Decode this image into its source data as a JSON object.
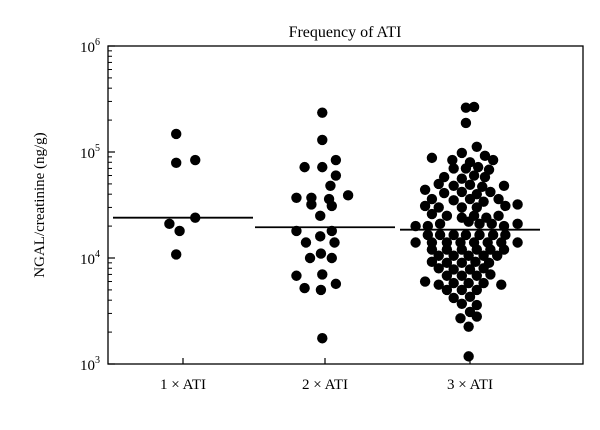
{
  "chart_data": {
    "type": "scatter",
    "title": "Frequency of ATI",
    "ylabel": "NGAL/creatinine (ng/g)",
    "xlabel": "",
    "yscale": "log",
    "ylim": [
      1000,
      1000000
    ],
    "y_ticks": [
      {
        "value": 1000,
        "base": "10",
        "exp": "3"
      },
      {
        "value": 10000,
        "base": "10",
        "exp": "4"
      },
      {
        "value": 100000,
        "base": "10",
        "exp": "5"
      },
      {
        "value": 1000000,
        "base": "10",
        "exp": "6"
      }
    ],
    "categories": [
      "1 × ATI",
      "2 × ATI",
      "3 × ATI"
    ],
    "grid": false,
    "series": [
      {
        "category": "1 × ATI",
        "median": 24000,
        "points": [
          {
            "x": -0.1,
            "y": 148000
          },
          {
            "x": -0.1,
            "y": 79000
          },
          {
            "x": 0.18,
            "y": 84000
          },
          {
            "x": -0.2,
            "y": 21000
          },
          {
            "x": 0.18,
            "y": 24000
          },
          {
            "x": -0.05,
            "y": 18000
          },
          {
            "x": -0.1,
            "y": 10800
          }
        ]
      },
      {
        "category": "2 × ATI",
        "median": 19500,
        "points": [
          {
            "x": -0.04,
            "y": 235000
          },
          {
            "x": -0.04,
            "y": 130000
          },
          {
            "x": -0.3,
            "y": 72000
          },
          {
            "x": -0.04,
            "y": 72000
          },
          {
            "x": 0.16,
            "y": 84000
          },
          {
            "x": 0.16,
            "y": 60000
          },
          {
            "x": 0.08,
            "y": 48000
          },
          {
            "x": -0.42,
            "y": 37000
          },
          {
            "x": -0.2,
            "y": 37000
          },
          {
            "x": 0.06,
            "y": 36000
          },
          {
            "x": 0.34,
            "y": 39000
          },
          {
            "x": -0.2,
            "y": 32000
          },
          {
            "x": 0.1,
            "y": 31000
          },
          {
            "x": -0.07,
            "y": 25000
          },
          {
            "x": -0.42,
            "y": 18000
          },
          {
            "x": 0.1,
            "y": 18000
          },
          {
            "x": -0.07,
            "y": 16000
          },
          {
            "x": -0.28,
            "y": 14000
          },
          {
            "x": 0.14,
            "y": 14000
          },
          {
            "x": -0.06,
            "y": 11000
          },
          {
            "x": -0.22,
            "y": 10000
          },
          {
            "x": 0.1,
            "y": 10000
          },
          {
            "x": -0.42,
            "y": 6800
          },
          {
            "x": -0.04,
            "y": 7000
          },
          {
            "x": -0.3,
            "y": 5200
          },
          {
            "x": -0.06,
            "y": 5000
          },
          {
            "x": 0.16,
            "y": 5700
          },
          {
            "x": -0.04,
            "y": 1750
          }
        ]
      },
      {
        "category": "3 × ATI",
        "median": 18500,
        "points": [
          {
            "x": -0.06,
            "y": 262000
          },
          {
            "x": 0.06,
            "y": 266000
          },
          {
            "x": -0.06,
            "y": 188000
          },
          {
            "x": 0.1,
            "y": 112000
          },
          {
            "x": -0.12,
            "y": 98000
          },
          {
            "x": 0.22,
            "y": 92000
          },
          {
            "x": -0.56,
            "y": 88000
          },
          {
            "x": -0.26,
            "y": 84000
          },
          {
            "x": 0.0,
            "y": 80000
          },
          {
            "x": 0.34,
            "y": 84000
          },
          {
            "x": -0.24,
            "y": 70000
          },
          {
            "x": -0.06,
            "y": 70000
          },
          {
            "x": 0.12,
            "y": 72000
          },
          {
            "x": 0.28,
            "y": 68000
          },
          {
            "x": -0.38,
            "y": 58000
          },
          {
            "x": -0.12,
            "y": 56000
          },
          {
            "x": 0.06,
            "y": 60000
          },
          {
            "x": 0.22,
            "y": 58000
          },
          {
            "x": -0.46,
            "y": 50000
          },
          {
            "x": -0.24,
            "y": 48000
          },
          {
            "x": 0.0,
            "y": 49000
          },
          {
            "x": 0.18,
            "y": 47000
          },
          {
            "x": 0.5,
            "y": 48000
          },
          {
            "x": -0.66,
            "y": 44000
          },
          {
            "x": -0.38,
            "y": 41000
          },
          {
            "x": -0.12,
            "y": 42000
          },
          {
            "x": 0.1,
            "y": 40000
          },
          {
            "x": 0.3,
            "y": 42000
          },
          {
            "x": -0.56,
            "y": 36000
          },
          {
            "x": -0.24,
            "y": 35000
          },
          {
            "x": 0.0,
            "y": 36000
          },
          {
            "x": 0.2,
            "y": 34000
          },
          {
            "x": 0.42,
            "y": 36000
          },
          {
            "x": -0.66,
            "y": 31000
          },
          {
            "x": -0.46,
            "y": 30000
          },
          {
            "x": -0.12,
            "y": 30000
          },
          {
            "x": 0.1,
            "y": 30000
          },
          {
            "x": 0.52,
            "y": 31000
          },
          {
            "x": 0.7,
            "y": 32000
          },
          {
            "x": -0.56,
            "y": 26000
          },
          {
            "x": -0.34,
            "y": 25000
          },
          {
            "x": -0.12,
            "y": 24000
          },
          {
            "x": 0.06,
            "y": 25000
          },
          {
            "x": 0.24,
            "y": 24000
          },
          {
            "x": 0.42,
            "y": 25000
          },
          {
            "x": -0.8,
            "y": 20000
          },
          {
            "x": -0.62,
            "y": 20000
          },
          {
            "x": -0.44,
            "y": 21000
          },
          {
            "x": -0.02,
            "y": 22000
          },
          {
            "x": 0.14,
            "y": 21000
          },
          {
            "x": 0.32,
            "y": 21000
          },
          {
            "x": 0.5,
            "y": 20000
          },
          {
            "x": 0.7,
            "y": 21000
          },
          {
            "x": -0.62,
            "y": 16500
          },
          {
            "x": -0.44,
            "y": 16500
          },
          {
            "x": -0.24,
            "y": 16500
          },
          {
            "x": -0.06,
            "y": 16500
          },
          {
            "x": 0.14,
            "y": 16500
          },
          {
            "x": 0.34,
            "y": 16500
          },
          {
            "x": 0.52,
            "y": 16500
          },
          {
            "x": -0.8,
            "y": 14000
          },
          {
            "x": -0.56,
            "y": 14000
          },
          {
            "x": -0.34,
            "y": 14000
          },
          {
            "x": -0.14,
            "y": 14000
          },
          {
            "x": 0.06,
            "y": 14000
          },
          {
            "x": 0.26,
            "y": 14000
          },
          {
            "x": 0.46,
            "y": 14000
          },
          {
            "x": 0.7,
            "y": 14000
          },
          {
            "x": -0.56,
            "y": 12000
          },
          {
            "x": -0.34,
            "y": 12000
          },
          {
            "x": -0.12,
            "y": 12000
          },
          {
            "x": 0.1,
            "y": 12000
          },
          {
            "x": 0.3,
            "y": 12000
          },
          {
            "x": 0.5,
            "y": 12000
          },
          {
            "x": -0.46,
            "y": 10500
          },
          {
            "x": -0.24,
            "y": 10500
          },
          {
            "x": -0.02,
            "y": 10500
          },
          {
            "x": 0.2,
            "y": 10500
          },
          {
            "x": 0.4,
            "y": 10500
          },
          {
            "x": -0.56,
            "y": 9200
          },
          {
            "x": -0.34,
            "y": 9000
          },
          {
            "x": -0.12,
            "y": 9000
          },
          {
            "x": 0.08,
            "y": 9200
          },
          {
            "x": 0.28,
            "y": 9000
          },
          {
            "x": -0.46,
            "y": 8000
          },
          {
            "x": -0.24,
            "y": 7800
          },
          {
            "x": 0.0,
            "y": 7800
          },
          {
            "x": 0.2,
            "y": 8000
          },
          {
            "x": -0.34,
            "y": 6800
          },
          {
            "x": -0.12,
            "y": 6800
          },
          {
            "x": 0.1,
            "y": 6800
          },
          {
            "x": 0.3,
            "y": 7000
          },
          {
            "x": -0.66,
            "y": 6000
          },
          {
            "x": -0.46,
            "y": 5600
          },
          {
            "x": -0.24,
            "y": 5800
          },
          {
            "x": -0.02,
            "y": 5800
          },
          {
            "x": 0.2,
            "y": 5800
          },
          {
            "x": 0.46,
            "y": 5600
          },
          {
            "x": -0.34,
            "y": 5000
          },
          {
            "x": -0.12,
            "y": 5000
          },
          {
            "x": 0.1,
            "y": 5000
          },
          {
            "x": -0.24,
            "y": 4200
          },
          {
            "x": 0.0,
            "y": 4300
          },
          {
            "x": -0.12,
            "y": 3700
          },
          {
            "x": 0.1,
            "y": 3600
          },
          {
            "x": 0.0,
            "y": 3100
          },
          {
            "x": -0.14,
            "y": 2700
          },
          {
            "x": 0.1,
            "y": 2800
          },
          {
            "x": -0.02,
            "y": 2250
          },
          {
            "x": -0.02,
            "y": 1180
          }
        ]
      }
    ]
  }
}
